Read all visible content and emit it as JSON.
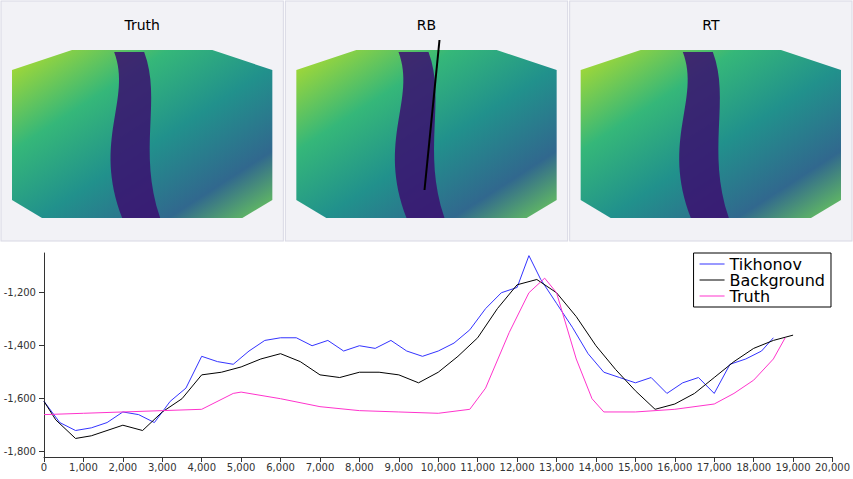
{
  "panels": [
    {
      "title": "Truth"
    },
    {
      "title": "RB"
    },
    {
      "title": "RT"
    }
  ],
  "chart_data": {
    "type": "line",
    "xlim": [
      0,
      20000
    ],
    "xticks": [
      0,
      1000,
      2000,
      3000,
      4000,
      5000,
      6000,
      7000,
      8000,
      9000,
      10000,
      11000,
      12000,
      13000,
      14000,
      15000,
      16000,
      17000,
      18000,
      19000,
      20000
    ],
    "ylim": [
      -1820,
      -1050
    ],
    "yticks": [
      -1800,
      -1600,
      -1400,
      -1200
    ],
    "grid": false,
    "legend": "top-right",
    "series": [
      {
        "name": "Tikhonov",
        "color": "#3333ff",
        "x": [
          0,
          400,
          800,
          1200,
          1600,
          2000,
          2400,
          2800,
          3200,
          3600,
          4000,
          4400,
          4800,
          5200,
          5600,
          6000,
          6400,
          6800,
          7200,
          7600,
          8000,
          8400,
          8800,
          9200,
          9600,
          10000,
          10400,
          10800,
          11200,
          11600,
          12000,
          12300,
          12600,
          13000,
          13400,
          13800,
          14200,
          14600,
          15000,
          15400,
          15800,
          16200,
          16600,
          17000,
          17400,
          17800,
          18200,
          18500
        ],
        "values": [
          -1610,
          -1690,
          -1720,
          -1710,
          -1690,
          -1650,
          -1660,
          -1690,
          -1610,
          -1560,
          -1440,
          -1460,
          -1470,
          -1420,
          -1380,
          -1370,
          -1370,
          -1400,
          -1380,
          -1420,
          -1400,
          -1410,
          -1380,
          -1420,
          -1440,
          -1420,
          -1390,
          -1340,
          -1260,
          -1200,
          -1180,
          -1060,
          -1150,
          -1240,
          -1330,
          -1430,
          -1500,
          -1520,
          -1540,
          -1520,
          -1580,
          -1540,
          -1520,
          -1580,
          -1470,
          -1450,
          -1420,
          -1370
        ]
      },
      {
        "name": "Background",
        "color": "#000000",
        "x": [
          0,
          300,
          800,
          1200,
          2000,
          2500,
          3000,
          3500,
          4000,
          4500,
          5000,
          5500,
          6000,
          6500,
          7000,
          7500,
          8000,
          8500,
          9000,
          9500,
          10000,
          10500,
          11000,
          11500,
          12000,
          12500,
          13000,
          13500,
          14000,
          14500,
          15000,
          15500,
          16000,
          16500,
          17000,
          17500,
          18000,
          18500,
          19000
        ],
        "values": [
          -1610,
          -1680,
          -1750,
          -1740,
          -1700,
          -1720,
          -1650,
          -1600,
          -1510,
          -1500,
          -1480,
          -1450,
          -1430,
          -1460,
          -1510,
          -1520,
          -1500,
          -1500,
          -1510,
          -1540,
          -1500,
          -1440,
          -1370,
          -1260,
          -1170,
          -1150,
          -1200,
          -1290,
          -1400,
          -1490,
          -1570,
          -1640,
          -1620,
          -1580,
          -1520,
          -1460,
          -1410,
          -1380,
          -1360
        ]
      },
      {
        "name": "Truth",
        "color": "#ff33cc",
        "x": [
          0,
          1000,
          2000,
          3000,
          4000,
          4800,
          5000,
          6000,
          7000,
          8000,
          9000,
          10000,
          10800,
          11200,
          11800,
          12300,
          12700,
          13000,
          13500,
          13900,
          14200,
          15000,
          16000,
          17000,
          17500,
          18000,
          18500,
          18800
        ],
        "values": [
          -1660,
          -1655,
          -1650,
          -1645,
          -1640,
          -1580,
          -1575,
          -1600,
          -1630,
          -1645,
          -1650,
          -1655,
          -1640,
          -1560,
          -1350,
          -1200,
          -1145,
          -1200,
          -1450,
          -1600,
          -1650,
          -1650,
          -1640,
          -1620,
          -1580,
          -1530,
          -1450,
          -1370
        ]
      }
    ]
  }
}
